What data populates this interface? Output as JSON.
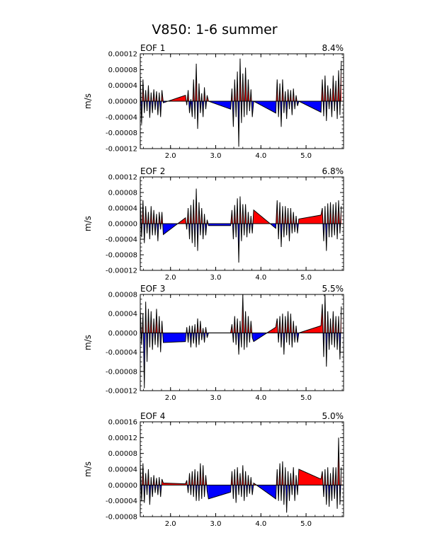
{
  "title": "V850: 1-6 summer",
  "colors": {
    "positive": "#ff0000",
    "negative": "#0000ff",
    "line": "#000000"
  },
  "chart_data": [
    {
      "type": "area",
      "panel_label": "EOF 1",
      "variance": "8.4%",
      "ylabel": "m/s",
      "ylim": [
        -0.00012,
        0.00012
      ],
      "yticks": [
        -0.00012,
        -8e-05,
        -4e-05,
        0.0,
        4e-05,
        8e-05,
        0.00012
      ],
      "ytick_labels": [
        "-0.00012",
        "-0.00008",
        "-0.00004",
        "0.00000",
        "0.00004",
        "0.00008",
        "0.00012"
      ],
      "xlim": [
        1.33,
        5.83
      ],
      "xticks": [
        2.0,
        3.0,
        4.0,
        5.0
      ],
      "xtick_labels": [
        "2.0",
        "3.0",
        "4.0",
        "5.0"
      ],
      "x": [
        1.33,
        1.36,
        1.39,
        1.42,
        1.45,
        1.48,
        1.51,
        1.54,
        1.57,
        1.6,
        1.63,
        1.66,
        1.69,
        1.72,
        1.75,
        1.78,
        1.81,
        1.84,
        2.33,
        2.36,
        2.39,
        2.42,
        2.45,
        2.48,
        2.51,
        2.54,
        2.57,
        2.6,
        2.63,
        2.66,
        2.69,
        2.72,
        2.75,
        2.78,
        2.81,
        2.84,
        3.33,
        3.36,
        3.39,
        3.42,
        3.45,
        3.48,
        3.51,
        3.54,
        3.57,
        3.6,
        3.63,
        3.66,
        3.69,
        3.72,
        3.75,
        3.78,
        3.81,
        3.84,
        4.33,
        4.36,
        4.39,
        4.42,
        4.45,
        4.48,
        4.51,
        4.54,
        4.57,
        4.6,
        4.63,
        4.66,
        4.69,
        4.72,
        4.75,
        4.78,
        4.81,
        4.84,
        5.33,
        5.36,
        5.39,
        5.42,
        5.45,
        5.48,
        5.51,
        5.54,
        5.57,
        5.6,
        5.63,
        5.66,
        5.69,
        5.72,
        5.75,
        5.78
      ],
      "values": [
        6.5e-05,
        -5.8e-05,
        5.5e-05,
        -3e-05,
        2.8e-05,
        -2.5e-05,
        4e-05,
        -4.2e-05,
        2.2e-05,
        -3e-05,
        3e-05,
        -2.2e-05,
        2.5e-05,
        -3.5e-05,
        2.2e-05,
        -4e-05,
        2.8e-05,
        -4e-06,
        1.5e-05,
        -1e-05,
        2.8e-05,
        -3e-05,
        5e-06,
        -4e-05,
        5.5e-05,
        -4.5e-05,
        9.5e-05,
        -7e-05,
        4.5e-05,
        -3e-05,
        2e-05,
        -4e-05,
        3.5e-05,
        -2e-05,
        1.5e-05,
        0.0,
        -2e-05,
        3.2e-05,
        -6.5e-05,
        5.5e-05,
        -4e-05,
        7.5e-05,
        -0.000115,
        0.000108,
        -5.5e-05,
        7e-05,
        -4e-05,
        8.5e-05,
        -3.5e-05,
        5.5e-05,
        -2.5e-05,
        3e-05,
        -4e-05,
        0.0,
        -3e-05,
        5.5e-05,
        -4e-05,
        4.5e-05,
        -6.5e-05,
        5.5e-05,
        -3e-05,
        2.5e-05,
        -4.5e-05,
        3e-05,
        -2e-05,
        2.8e-05,
        -3.5e-05,
        3.2e-05,
        -2e-05,
        1.5e-05,
        -1.2e-05,
        0.0,
        -2.8e-05,
        5.5e-05,
        -3.8e-05,
        6.5e-05,
        -5e-05,
        4e-05,
        -2e-05,
        3.2e-05,
        -4e-05,
        6.5e-05,
        -2.5e-05,
        5.2e-05,
        -4.5e-05,
        7.8e-05,
        -3.5e-05,
        0.000102
      ]
    },
    {
      "type": "area",
      "panel_label": "EOF 2",
      "variance": "6.8%",
      "ylabel": "m/s",
      "ylim": [
        -0.00012,
        0.00012
      ],
      "yticks": [
        -0.00012,
        -8e-05,
        -4e-05,
        0.0,
        4e-05,
        8e-05,
        0.00012
      ],
      "ytick_labels": [
        "-0.00012",
        "-0.00008",
        "-0.00004",
        "0.00000",
        "0.00004",
        "0.00008",
        "0.00012"
      ],
      "xlim": [
        1.33,
        5.83
      ],
      "xticks": [
        2.0,
        3.0,
        4.0,
        5.0
      ],
      "xtick_labels": [
        "2.0",
        "3.0",
        "4.0",
        "5.0"
      ],
      "x": [
        1.33,
        1.36,
        1.39,
        1.42,
        1.45,
        1.48,
        1.51,
        1.54,
        1.57,
        1.6,
        1.63,
        1.66,
        1.69,
        1.72,
        1.75,
        1.78,
        1.81,
        1.84,
        2.33,
        2.36,
        2.39,
        2.42,
        2.45,
        2.48,
        2.51,
        2.54,
        2.57,
        2.6,
        2.63,
        2.66,
        2.69,
        2.72,
        2.75,
        2.78,
        2.81,
        2.84,
        3.33,
        3.36,
        3.39,
        3.42,
        3.45,
        3.48,
        3.51,
        3.54,
        3.57,
        3.6,
        3.63,
        3.66,
        3.69,
        3.72,
        3.75,
        3.78,
        3.81,
        3.84,
        4.33,
        4.36,
        4.39,
        4.42,
        4.45,
        4.48,
        4.51,
        4.54,
        4.57,
        4.6,
        4.63,
        4.66,
        4.69,
        4.72,
        4.75,
        4.78,
        4.81,
        4.84,
        5.33,
        5.36,
        5.39,
        5.42,
        5.45,
        5.48,
        5.51,
        5.54,
        5.57,
        5.6,
        5.63,
        5.66,
        5.69,
        5.72,
        5.75,
        5.78
      ],
      "values": [
        5.5e-05,
        -3.5e-05,
        6e-05,
        -5e-05,
        4.5e-05,
        -2.5e-05,
        3e-05,
        -4e-05,
        4.5e-05,
        -3e-05,
        3.5e-05,
        -3e-05,
        2.5e-05,
        -4.5e-05,
        3e-05,
        -1.5e-05,
        3e-05,
        -2.8e-05,
        1.5e-05,
        -1.5e-05,
        4e-05,
        -4e-05,
        4.8e-05,
        -5e-05,
        6.2e-05,
        -6e-05,
        9e-05,
        -7e-05,
        5.5e-05,
        -3e-05,
        4e-05,
        -4e-05,
        2.5e-05,
        -3e-05,
        1e-05,
        -5e-06,
        -5e-06,
        3.5e-05,
        -4e-05,
        4.8e-05,
        -3.5e-05,
        6.5e-05,
        -0.0001,
        7e-05,
        -4.5e-05,
        5e-05,
        -3e-05,
        5e-05,
        -3.5e-05,
        3e-05,
        -2.5e-05,
        2e-05,
        -2.5e-05,
        3.5e-05,
        -1.2e-05,
        6e-05,
        -4e-05,
        5.5e-05,
        -6e-05,
        4.5e-05,
        -3.5e-05,
        4.5e-05,
        -3e-05,
        4e-05,
        -4.5e-05,
        4e-05,
        -2.5e-05,
        3e-05,
        -2.2e-05,
        2e-05,
        -2.5e-05,
        1.2e-05,
        2.2e-05,
        4e-05,
        -4.5e-05,
        4.5e-05,
        -7e-05,
        5.2e-05,
        -3.5e-05,
        5.5e-05,
        -3.5e-05,
        5e-05,
        -3e-05,
        5.5e-05,
        -4e-05,
        6e-05,
        -2.5e-05,
        4.5e-05
      ]
    },
    {
      "type": "area",
      "panel_label": "EOF 3",
      "variance": "5.5%",
      "ylabel": "m/s",
      "ylim": [
        -0.00012,
        8e-05
      ],
      "yticks": [
        -0.00012,
        -8e-05,
        -4e-05,
        0.0,
        4e-05,
        8e-05
      ],
      "ytick_labels": [
        "-0.00012",
        "-0.00008",
        "-0.00004",
        "0.00000",
        "0.00004",
        "0.00008"
      ],
      "xlim": [
        1.33,
        5.83
      ],
      "xticks": [
        2.0,
        3.0,
        4.0,
        5.0
      ],
      "xtick_labels": [
        "2.0",
        "3.0",
        "4.0",
        "5.0"
      ],
      "x": [
        1.33,
        1.36,
        1.39,
        1.42,
        1.45,
        1.48,
        1.51,
        1.54,
        1.57,
        1.6,
        1.63,
        1.66,
        1.69,
        1.72,
        1.75,
        1.78,
        1.81,
        1.84,
        2.33,
        2.36,
        2.39,
        2.42,
        2.45,
        2.48,
        2.51,
        2.54,
        2.57,
        2.6,
        2.63,
        2.66,
        2.69,
        2.72,
        2.75,
        2.78,
        2.81,
        2.84,
        3.33,
        3.36,
        3.39,
        3.42,
        3.45,
        3.48,
        3.51,
        3.54,
        3.57,
        3.6,
        3.63,
        3.66,
        3.69,
        3.72,
        3.75,
        3.78,
        3.81,
        3.84,
        4.33,
        4.36,
        4.39,
        4.42,
        4.45,
        4.48,
        4.51,
        4.54,
        4.57,
        4.6,
        4.63,
        4.66,
        4.69,
        4.72,
        4.75,
        4.78,
        4.81,
        4.84,
        5.33,
        5.36,
        5.39,
        5.42,
        5.45,
        5.48,
        5.51,
        5.54,
        5.57,
        5.6,
        5.63,
        5.66,
        5.69,
        5.72,
        5.75,
        5.78
      ],
      "values": [
        5e-05,
        -2.5e-05,
        4e-05,
        -0.000115,
        6.5e-05,
        -6e-05,
        5e-05,
        -3e-05,
        4.5e-05,
        -3.5e-05,
        3e-05,
        -2.5e-05,
        5e-05,
        -3e-05,
        3.5e-05,
        -4e-05,
        2.5e-05,
        -2e-05,
        -1.8e-05,
        1.2e-05,
        -2e-05,
        1.5e-05,
        -3e-05,
        1.5e-05,
        -2.2e-05,
        1.8e-05,
        -3e-05,
        3e-05,
        -2.5e-05,
        2.5e-05,
        -1.5e-05,
        1e-05,
        -2e-05,
        1.2e-05,
        -1e-05,
        0.0,
        0.0,
        1.8e-05,
        -2e-05,
        3.5e-05,
        -2.5e-05,
        3e-05,
        -4.5e-05,
        2.5e-05,
        -3e-05,
        8e-05,
        -3.5e-05,
        4.5e-05,
        -3e-05,
        3.5e-05,
        -2e-05,
        2.5e-05,
        -1e-05,
        -1.8e-05,
        1.2e-05,
        3e-05,
        -2e-05,
        3.5e-05,
        -3e-05,
        4e-05,
        -4.5e-05,
        3.5e-05,
        -2e-05,
        4.5e-05,
        -2.5e-05,
        4e-05,
        -3e-05,
        2.5e-05,
        -2e-05,
        1.5e-05,
        -2e-05,
        0.0,
        1.5e-05,
        6e-05,
        -5e-05,
        8e-05,
        -7e-05,
        4.5e-05,
        -3.5e-05,
        3e-05,
        -2.5e-05,
        4.5e-05,
        -3e-05,
        3.5e-05,
        -3.5e-05,
        3.5e-05,
        -5.5e-05,
        5.5e-05
      ]
    },
    {
      "type": "area",
      "panel_label": "EOF 4",
      "variance": "5.0%",
      "ylabel": "m/s",
      "ylim": [
        -8e-05,
        0.00016
      ],
      "yticks": [
        -8e-05,
        -4e-05,
        0.0,
        4e-05,
        8e-05,
        0.00012,
        0.00016
      ],
      "ytick_labels": [
        "-0.00008",
        "-0.00004",
        "0.00000",
        "0.00004",
        "0.00008",
        "0.00012",
        "0.00016"
      ],
      "xlim": [
        1.33,
        5.83
      ],
      "xticks": [
        2.0,
        3.0,
        4.0,
        5.0
      ],
      "xtick_labels": [
        "2.0",
        "3.0",
        "4.0",
        "5.0"
      ],
      "x": [
        1.33,
        1.36,
        1.39,
        1.42,
        1.45,
        1.48,
        1.51,
        1.54,
        1.57,
        1.6,
        1.63,
        1.66,
        1.69,
        1.72,
        1.75,
        1.78,
        1.81,
        1.84,
        2.33,
        2.36,
        2.39,
        2.42,
        2.45,
        2.48,
        2.51,
        2.54,
        2.57,
        2.6,
        2.63,
        2.66,
        2.69,
        2.72,
        2.75,
        2.78,
        2.81,
        2.84,
        3.33,
        3.36,
        3.39,
        3.42,
        3.45,
        3.48,
        3.51,
        3.54,
        3.57,
        3.6,
        3.63,
        3.66,
        3.69,
        3.72,
        3.75,
        3.78,
        3.81,
        3.84,
        4.33,
        4.36,
        4.39,
        4.42,
        4.45,
        4.48,
        4.51,
        4.54,
        4.57,
        4.6,
        4.63,
        4.66,
        4.69,
        4.72,
        4.75,
        4.78,
        4.81,
        4.84,
        5.33,
        5.36,
        5.39,
        5.42,
        5.45,
        5.48,
        5.51,
        5.54,
        5.57,
        5.6,
        5.63,
        5.66,
        5.69,
        5.72,
        5.75,
        5.78
      ],
      "values": [
        5e-05,
        -4e-05,
        5.5e-05,
        -4.5e-05,
        3e-05,
        -2.5e-05,
        4e-05,
        -5e-05,
        2e-05,
        -3e-05,
        2.5e-05,
        -2e-05,
        1.8e-05,
        -2.5e-05,
        2e-05,
        -3e-05,
        1.5e-05,
        5e-06,
        3e-06,
        1.2e-05,
        -2e-05,
        3e-05,
        -2.5e-05,
        3.5e-05,
        -3e-05,
        4e-05,
        -4e-05,
        3.5e-05,
        -4e-05,
        5.5e-05,
        -3.5e-05,
        5e-05,
        -3e-05,
        2.5e-05,
        -1.5e-05,
        -3.5e-05,
        -1.8e-05,
        3.5e-05,
        -3.5e-05,
        4e-05,
        -4.5e-05,
        4.5e-05,
        -2.5e-05,
        3e-05,
        -3e-05,
        5e-05,
        -4e-05,
        3.5e-05,
        -3e-05,
        2.5e-05,
        -2.2e-05,
        2e-05,
        -2.5e-05,
        5e-06,
        -3.5e-05,
        4e-05,
        -4e-05,
        5.5e-05,
        -4e-05,
        6e-05,
        -5e-05,
        4.5e-05,
        -7e-05,
        3.5e-05,
        -4e-05,
        3e-05,
        -2.5e-05,
        4.5e-05,
        -4e-05,
        2.5e-05,
        -2.5e-05,
        4e-05,
        1.5e-05,
        3.5e-05,
        -3e-05,
        4e-05,
        -5e-05,
        4.5e-05,
        -5.5e-05,
        3e-05,
        -4e-05,
        4.5e-05,
        -3.5e-05,
        4.5e-05,
        -6e-05,
        0.00012,
        -5e-05,
        4.5e-05
      ]
    }
  ]
}
